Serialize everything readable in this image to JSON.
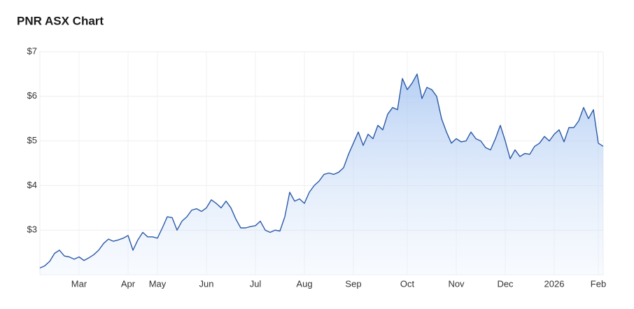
{
  "chart_data": {
    "type": "area",
    "title": "PNR ASX Chart",
    "categories": [
      null,
      null,
      null,
      null,
      null,
      null,
      null,
      null,
      "Mar",
      null,
      null,
      null,
      null,
      null,
      null,
      null,
      null,
      null,
      "Apr",
      null,
      null,
      null,
      null,
      null,
      "May",
      null,
      null,
      null,
      null,
      null,
      null,
      null,
      null,
      null,
      "Jun",
      null,
      null,
      null,
      null,
      null,
      null,
      null,
      null,
      null,
      "Jul",
      null,
      null,
      null,
      null,
      null,
      null,
      null,
      null,
      null,
      "Aug",
      null,
      null,
      null,
      null,
      null,
      null,
      null,
      null,
      null,
      "Sep",
      null,
      null,
      null,
      null,
      null,
      null,
      null,
      null,
      null,
      null,
      "Oct",
      null,
      null,
      null,
      null,
      null,
      null,
      null,
      null,
      null,
      "Nov",
      null,
      null,
      null,
      null,
      null,
      null,
      null,
      null,
      null,
      "Dec",
      null,
      null,
      null,
      null,
      null,
      null,
      null,
      null,
      null,
      "2026",
      null,
      null,
      null,
      null,
      null,
      null,
      null,
      null,
      "Feb",
      null
    ],
    "series": [
      {
        "color": "#2b5aa8",
        "values": [
          2.15,
          2.2,
          2.3,
          2.48,
          2.55,
          2.42,
          2.4,
          2.35,
          2.4,
          2.32,
          2.38,
          2.45,
          2.55,
          2.7,
          2.8,
          2.75,
          2.78,
          2.82,
          2.88,
          2.55,
          2.78,
          2.95,
          2.85,
          2.85,
          2.82,
          3.05,
          3.3,
          3.28,
          3.0,
          3.2,
          3.3,
          3.45,
          3.48,
          3.42,
          3.5,
          3.68,
          3.6,
          3.5,
          3.65,
          3.5,
          3.25,
          3.05,
          3.05,
          3.08,
          3.1,
          3.2,
          3.0,
          2.95,
          3.0,
          2.98,
          3.3,
          3.85,
          3.65,
          3.7,
          3.6,
          3.85,
          4.0,
          4.1,
          4.25,
          4.28,
          4.25,
          4.3,
          4.4,
          4.7,
          4.95,
          5.2,
          4.9,
          5.15,
          5.05,
          5.35,
          5.25,
          5.6,
          5.75,
          5.7,
          6.4,
          6.15,
          6.3,
          6.5,
          5.95,
          6.2,
          6.15,
          6.0,
          5.5,
          5.2,
          4.95,
          5.05,
          4.98,
          5.0,
          5.2,
          5.05,
          5.0,
          4.85,
          4.8,
          5.05,
          5.35,
          5.0,
          4.6,
          4.8,
          4.65,
          4.72,
          4.7,
          4.88,
          4.95,
          5.1,
          5.0,
          5.15,
          5.25,
          4.98,
          5.3,
          5.3,
          5.45,
          5.75,
          5.5,
          5.7,
          4.95,
          4.88
        ]
      }
    ],
    "ylim": [
      2,
      7
    ],
    "yticks": [
      {
        "value": 3,
        "label": "$3"
      },
      {
        "value": 4,
        "label": "$4"
      },
      {
        "value": 5,
        "label": "$5"
      },
      {
        "value": 6,
        "label": "$6"
      },
      {
        "value": 7,
        "label": "$7"
      }
    ],
    "grid": true
  }
}
